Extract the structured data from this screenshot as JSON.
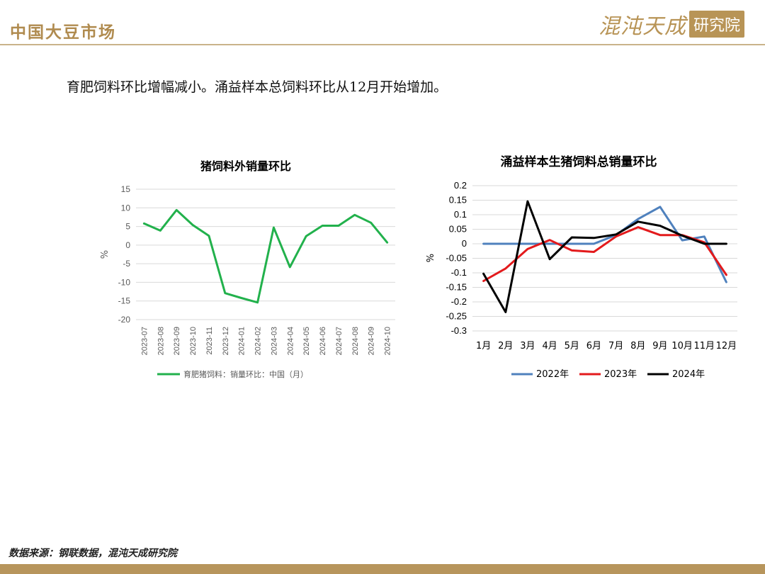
{
  "header": {
    "title": "中国大豆市场",
    "logo_main": "混沌天成",
    "logo_box": "研究院"
  },
  "subtitle": "育肥饲料环比增幅减小。涌益样本总饲料环比从12月开始增加。",
  "footer": {
    "source": "数据来源：钢联数据，混沌天成研究院"
  },
  "chart_data": [
    {
      "type": "line",
      "title": "猪饲料外销量环比",
      "ylabel": "%",
      "ylim": [
        -20,
        15
      ],
      "yticks": [
        15,
        10,
        5,
        0,
        -5,
        -10,
        -15,
        -20
      ],
      "categories": [
        "2023-07",
        "2023-08",
        "2023-09",
        "2023-10",
        "2023-11",
        "2023-12",
        "2024-01",
        "2024-02",
        "2024-03",
        "2024-04",
        "2024-05",
        "2024-06",
        "2024-07",
        "2024-08",
        "2024-09",
        "2024-10"
      ],
      "series": [
        {
          "name": "育肥猪饲料：销量环比：中国（月）",
          "color": "#22b14c",
          "values": [
            5.8,
            3.9,
            9.4,
            5.4,
            2.5,
            -12.9,
            -14.2,
            -15.4,
            4.7,
            -5.9,
            2.4,
            5.2,
            5.2,
            8.1,
            6.0,
            0.7
          ]
        }
      ],
      "grid": true,
      "legend": "bottom"
    },
    {
      "type": "line",
      "title": "涌益样本生猪饲料总销量环比",
      "ylabel": "%",
      "ylim": [
        -0.3,
        0.2
      ],
      "yticks": [
        "0.2",
        "0.15",
        "0.1",
        "0.05",
        "0",
        "-0.05",
        "-0.1",
        "-0.15",
        "-0.2",
        "-0.25",
        "-0.3"
      ],
      "categories": [
        "1月",
        "2月",
        "3月",
        "4月",
        "5月",
        "6月",
        "7月",
        "8月",
        "9月",
        "10月",
        "11月",
        "12月"
      ],
      "series": [
        {
          "name": "2022年",
          "color": "#4f81bd",
          "values": [
            0,
            0,
            0,
            0,
            0,
            0,
            0.03,
            0.085,
            0.127,
            0.012,
            0.025,
            -0.132
          ]
        },
        {
          "name": "2023年",
          "color": "#e31a1c",
          "values": [
            -0.128,
            -0.085,
            -0.018,
            0.013,
            -0.023,
            -0.028,
            0.025,
            0.057,
            0.03,
            0.03,
            0.005,
            -0.107
          ]
        },
        {
          "name": "2024年",
          "color": "#000000",
          "values": [
            -0.103,
            -0.235,
            0.146,
            -0.053,
            0.022,
            0.02,
            0.032,
            0.076,
            0.062,
            0.028,
            0,
            0
          ]
        }
      ],
      "grid": true,
      "legend": "bottom"
    }
  ]
}
